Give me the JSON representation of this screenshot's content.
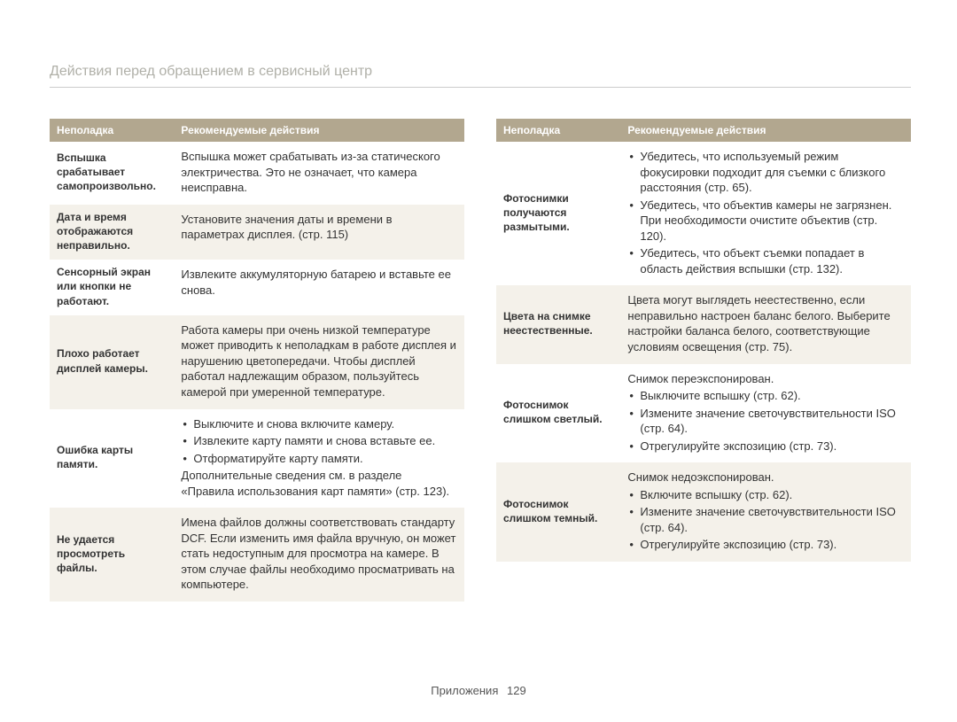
{
  "page_title": "Действия перед обращением в сервисный центр",
  "footer": {
    "section": "Приложения",
    "page": "129"
  },
  "headers": {
    "problem": "Неполадка",
    "action": "Рекомендуемые действия"
  },
  "left_rows": [
    {
      "problem": "Вспышка срабатывает самопроизвольно.",
      "action_plain": "Вспышка может срабатывать из-за статического электричества. Это не означает, что камера неисправна.",
      "stripe": false
    },
    {
      "problem": "Дата и время отображаются неправильно.",
      "action_plain": "Установите значения даты и времени в параметрах дисплея. (стр. 115)",
      "stripe": true
    },
    {
      "problem": "Сенсорный экран или кнопки не работают.",
      "action_plain": "Извлеките аккумуляторную батарею и вставьте ее снова.",
      "stripe": false
    },
    {
      "problem": "Плохо работает дисплей камеры.",
      "action_plain": "Работа камеры при очень низкой температуре может приводить к неполадкам в работе дисплея и нарушению цветопередачи. Чтобы дисплей работал надлежащим образом, пользуйтесь камерой при умеренной температуре.",
      "stripe": true
    },
    {
      "problem": "Ошибка карты памяти.",
      "action_list": [
        "Выключите и снова включите камеру.",
        "Извлеките карту памяти и снова вставьте ее.",
        "Отформатируйте карту памяти."
      ],
      "action_tail": "Дополнительные сведения см. в разделе «Правила использования карт памяти» (стр. 123).",
      "stripe": false
    },
    {
      "problem": "Не удается просмотреть файлы.",
      "action_plain": "Имена файлов должны соответствовать стандарту DCF. Если изменить имя файла вручную, он может стать недоступным для просмотра на камере. В этом случае файлы необходимо просматривать на компьютере.",
      "stripe": true
    }
  ],
  "right_rows": [
    {
      "problem": "Фотоснимки получаются размытыми.",
      "action_list": [
        "Убедитесь, что используемый режим фокусировки подходит для съемки с близкого расстояния (стр. 65).",
        "Убедитесь, что объектив камеры не загрязнен. При необходимости очистите объектив (стр. 120).",
        "Убедитесь, что объект съемки попадает в область действия вспышки (стр. 132)."
      ],
      "stripe": false
    },
    {
      "problem": "Цвета на снимке неестественные.",
      "action_plain": "Цвета могут выглядеть неестественно, если неправильно настроен баланс белого. Выберите настройки баланса белого, соответствующие условиям освещения (стр. 75).",
      "stripe": true
    },
    {
      "problem": "Фотоснимок слишком светлый.",
      "action_lead": "Снимок переэкспонирован.",
      "action_list": [
        "Выключите вспышку (стр. 62).",
        "Измените значение светочувствительности ISO (стр. 64).",
        "Отрегулируйте экспозицию (стр. 73)."
      ],
      "stripe": false
    },
    {
      "problem": "Фотоснимок слишком темный.",
      "action_lead": "Снимок недоэкспонирован.",
      "action_list": [
        "Включите вспышку (стр. 62).",
        "Измените значение светочувствительности ISO (стр. 64).",
        "Отрегулируйте экспозицию (стр. 73)."
      ],
      "stripe": true
    }
  ]
}
